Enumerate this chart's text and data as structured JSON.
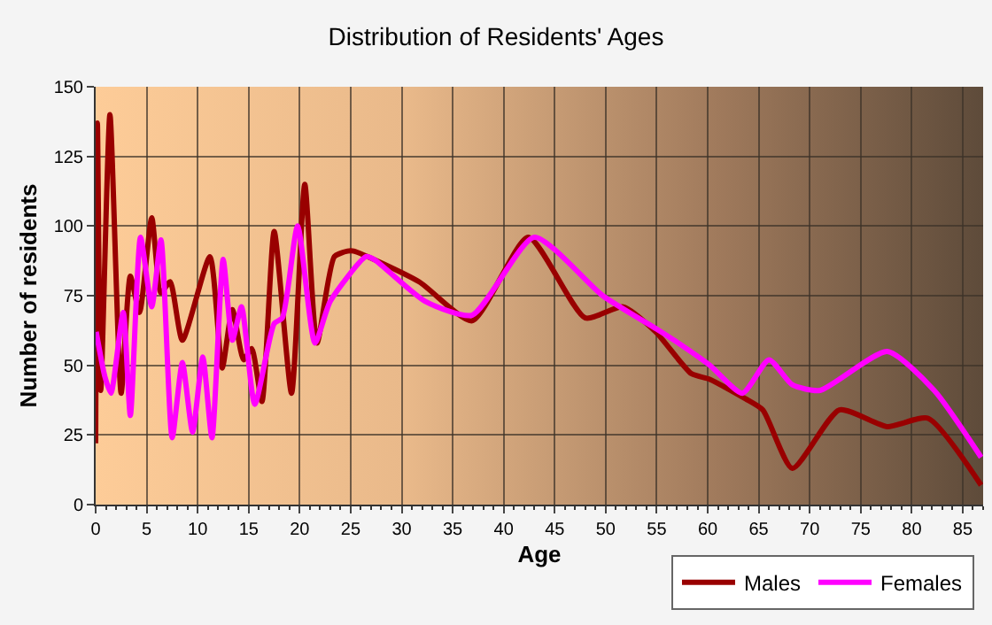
{
  "chart_data": {
    "type": "line",
    "title": "Distribution of Residents' Ages",
    "xlabel": "Age",
    "ylabel": "Number of residents",
    "xlim": [
      0,
      87
    ],
    "xticks": [
      0,
      5,
      10,
      15,
      20,
      25,
      30,
      35,
      40,
      45,
      50,
      55,
      60,
      65,
      70,
      75,
      80,
      85
    ],
    "ylim": [
      0,
      150
    ],
    "yticks": [
      0,
      25,
      50,
      75,
      100,
      125,
      150
    ],
    "grid": true,
    "legend": "bottom right",
    "series": [
      {
        "name": "Males",
        "color": "#990000",
        "x": [
          0,
          0.17,
          0.5,
          1.4,
          2.5,
          3.4,
          4.3,
          5.5,
          6.4,
          7.3,
          8.5,
          11.2,
          12.4,
          13.4,
          14.5,
          15.3,
          16.3,
          17.5,
          19.2,
          20.5,
          21.7,
          23.4,
          24.7,
          25.3,
          31.7,
          36.9,
          42.4,
          48,
          51.7,
          54.9,
          58.4,
          60.2,
          63.7,
          65.4,
          68.3,
          72.9,
          77.6,
          81.6,
          86.8
        ],
        "values": [
          22,
          137,
          41,
          140,
          40,
          82,
          69,
          103,
          76,
          80,
          59,
          89,
          49,
          70,
          52,
          56,
          37,
          98,
          40,
          115,
          58,
          89,
          91,
          91,
          80,
          66,
          96,
          67,
          71,
          62,
          47,
          45,
          38,
          34,
          13,
          34,
          28,
          31,
          7
        ]
      },
      {
        "name": "Females",
        "color": "#ff00ff",
        "x": [
          0.05,
          0.9,
          1.5,
          2.7,
          3.4,
          4.4,
          5.5,
          6.4,
          7.5,
          8.5,
          9.5,
          10.5,
          11.4,
          12.5,
          13.4,
          14.3,
          15.6,
          17.5,
          18.3,
          19.8,
          21.5,
          23,
          26.5,
          27.3,
          32.3,
          36.9,
          43,
          49.7,
          55,
          56.7,
          60.2,
          63.4,
          66,
          68.3,
          71,
          77.6,
          82.2,
          86.8
        ],
        "values": [
          62,
          46,
          40,
          69,
          32,
          96,
          71,
          95,
          24,
          51,
          26,
          53,
          24,
          88,
          59,
          71,
          36,
          65,
          67,
          100,
          58,
          73,
          89,
          88,
          73,
          68,
          96,
          75,
          63,
          59,
          50,
          40,
          52,
          43,
          41,
          55,
          41,
          17
        ]
      }
    ]
  }
}
